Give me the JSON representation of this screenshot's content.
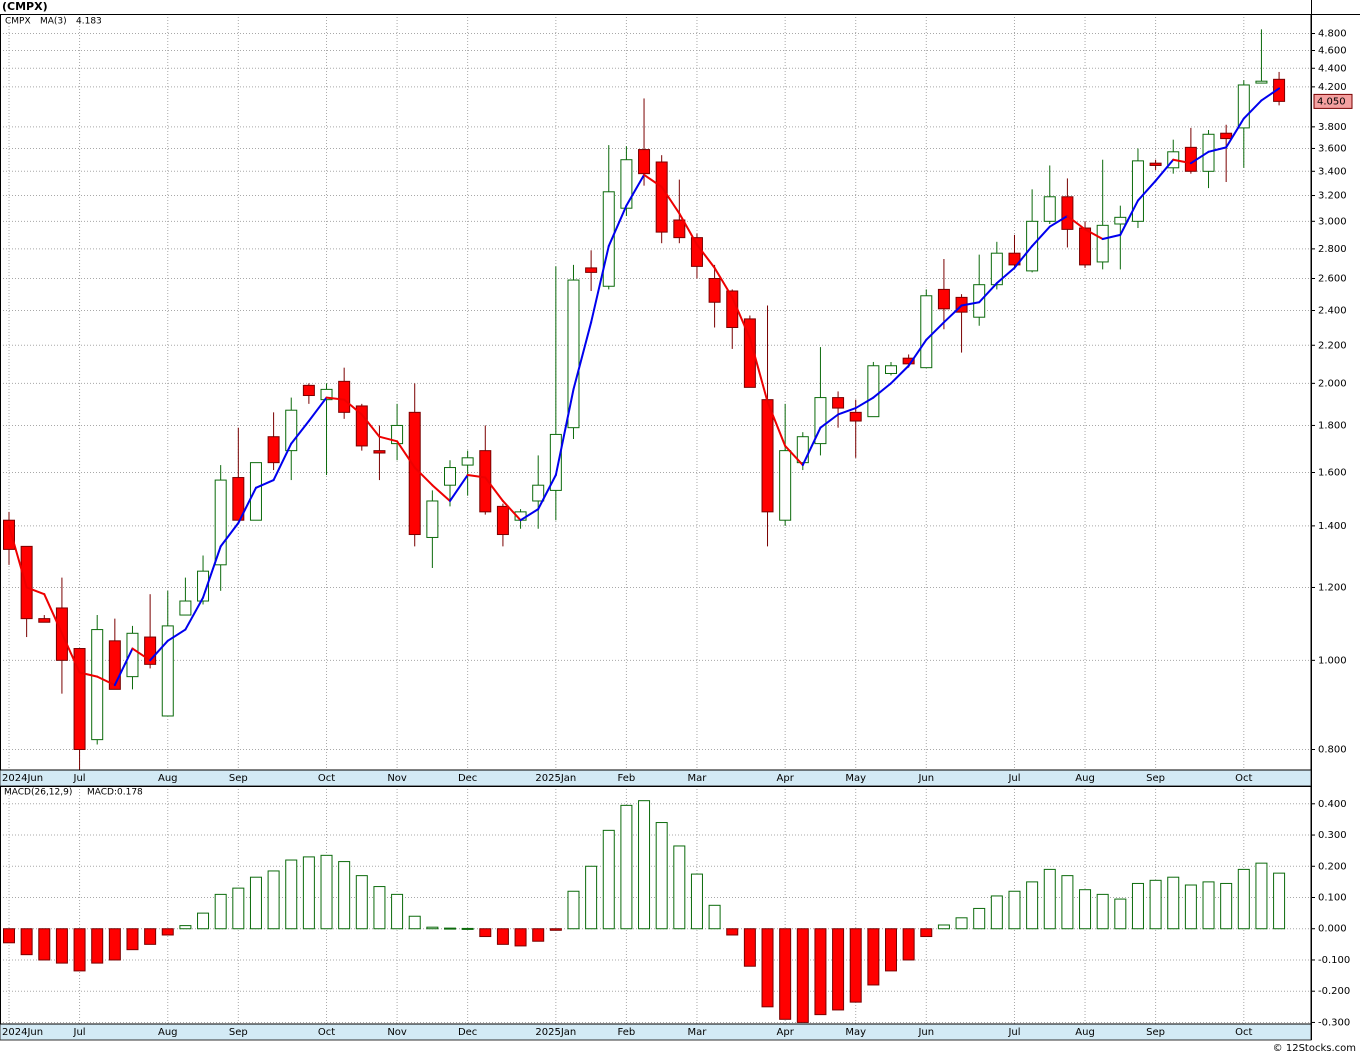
{
  "chart_data": [
    {
      "type": "candlestick",
      "title": "(CMPX)",
      "ticker": "CMPX",
      "categories": [
        "2024Jun",
        null,
        null,
        null,
        "Jul",
        null,
        null,
        null,
        null,
        "Aug",
        null,
        null,
        null,
        "Sep",
        null,
        null,
        null,
        null,
        "Oct",
        null,
        null,
        null,
        "Nov",
        null,
        null,
        null,
        "Dec",
        null,
        null,
        null,
        null,
        "2025Jan",
        null,
        null,
        null,
        "Feb",
        null,
        null,
        null,
        "Mar",
        null,
        null,
        null,
        null,
        "Apr",
        null,
        null,
        null,
        "May",
        null,
        null,
        null,
        "Jun",
        null,
        null,
        null,
        null,
        "Jul",
        null,
        null,
        null,
        "Aug",
        null,
        null,
        null,
        "Sep",
        null,
        null,
        null,
        null,
        "Oct",
        null,
        null
      ],
      "open": [
        1.42,
        1.33,
        1.11,
        1.14,
        1.03,
        0.82,
        1.05,
        0.96,
        1.06,
        0.87,
        1.12,
        1.16,
        1.27,
        1.58,
        1.42,
        1.75,
        1.69,
        1.99,
        1.92,
        2.01,
        1.89,
        1.69,
        1.72,
        1.86,
        1.36,
        1.55,
        1.63,
        1.69,
        1.47,
        1.42,
        1.49,
        1.53,
        1.79,
        2.67,
        2.55,
        3.1,
        3.59,
        3.48,
        3.01,
        2.88,
        2.6,
        2.52,
        2.35,
        1.92,
        1.42,
        1.64,
        1.72,
        1.93,
        1.86,
        1.84,
        2.05,
        2.13,
        2.08,
        2.53,
        2.48,
        2.36,
        2.56,
        2.77,
        2.65,
        3.0,
        3.19,
        2.95,
        2.71,
        2.98,
        3.0,
        3.47,
        3.43,
        3.61,
        3.4,
        3.74,
        3.79,
        4.24,
        4.28
      ],
      "high": [
        1.45,
        1.33,
        1.12,
        1.23,
        1.03,
        1.12,
        1.11,
        1.09,
        1.18,
        1.19,
        1.23,
        1.3,
        1.63,
        1.79,
        1.64,
        1.86,
        1.93,
        2.0,
        2.0,
        2.08,
        1.9,
        1.8,
        1.9,
        2.0,
        1.53,
        1.65,
        1.69,
        1.8,
        1.48,
        1.46,
        1.67,
        2.68,
        2.69,
        2.79,
        3.63,
        3.62,
        4.08,
        3.54,
        3.33,
        2.91,
        2.69,
        2.53,
        2.37,
        2.43,
        1.9,
        1.77,
        2.19,
        1.96,
        1.92,
        2.11,
        2.11,
        2.15,
        2.53,
        2.73,
        2.5,
        2.76,
        2.85,
        2.9,
        3.25,
        3.45,
        3.34,
        3.0,
        3.5,
        3.12,
        3.6,
        3.5,
        3.68,
        3.79,
        3.77,
        3.82,
        4.27,
        4.85,
        4.36
      ],
      "low": [
        1.27,
        1.06,
        1.1,
        0.92,
        0.76,
        0.81,
        0.93,
        0.93,
        0.98,
        0.87,
        1.12,
        1.15,
        1.19,
        1.42,
        1.42,
        1.61,
        1.57,
        1.9,
        1.59,
        1.83,
        1.69,
        1.57,
        1.65,
        1.33,
        1.26,
        1.47,
        1.51,
        1.44,
        1.33,
        1.39,
        1.39,
        1.42,
        1.74,
        2.52,
        2.53,
        3.04,
        3.28,
        2.84,
        2.84,
        2.6,
        2.3,
        2.18,
        1.98,
        1.33,
        1.4,
        1.61,
        1.67,
        1.79,
        1.66,
        1.84,
        2.04,
        2.08,
        2.08,
        2.29,
        2.16,
        2.31,
        2.53,
        2.67,
        2.64,
        2.98,
        2.81,
        2.67,
        2.66,
        2.66,
        2.95,
        3.41,
        3.38,
        3.38,
        3.26,
        3.31,
        3.43,
        4.24,
        4.01
      ],
      "close": [
        1.32,
        1.11,
        1.1,
        1.0,
        0.8,
        1.08,
        0.93,
        1.07,
        0.99,
        1.09,
        1.16,
        1.25,
        1.57,
        1.42,
        1.64,
        1.64,
        1.87,
        1.94,
        1.97,
        1.86,
        1.71,
        1.68,
        1.8,
        1.37,
        1.49,
        1.62,
        1.66,
        1.45,
        1.37,
        1.45,
        1.55,
        1.76,
        2.59,
        2.64,
        3.23,
        3.5,
        3.38,
        2.92,
        2.88,
        2.68,
        2.45,
        2.3,
        1.98,
        1.45,
        1.69,
        1.75,
        1.93,
        1.88,
        1.82,
        2.09,
        2.09,
        2.1,
        2.49,
        2.41,
        2.39,
        2.56,
        2.77,
        2.69,
        3.0,
        3.19,
        2.94,
        2.69,
        2.97,
        3.03,
        3.49,
        3.45,
        3.57,
        3.4,
        3.73,
        3.69,
        4.22,
        4.26,
        4.05
      ],
      "last_price_label": "4.050",
      "ma": {
        "name": "MA(3)",
        "value_label": "4.183",
        "rising_color": "#0000ee",
        "falling_color": "#ee0000",
        "values": [
          1.4,
          1.2,
          1.18,
          1.07,
          0.97,
          0.96,
          0.94,
          1.03,
          1.0,
          1.05,
          1.08,
          1.17,
          1.33,
          1.41,
          1.54,
          1.57,
          1.72,
          1.82,
          1.93,
          1.92,
          1.85,
          1.75,
          1.73,
          1.62,
          1.55,
          1.49,
          1.59,
          1.58,
          1.49,
          1.42,
          1.46,
          1.59,
          1.97,
          2.33,
          2.82,
          3.12,
          3.37,
          3.27,
          3.06,
          2.83,
          2.67,
          2.48,
          2.24,
          1.91,
          1.71,
          1.63,
          1.79,
          1.85,
          1.88,
          1.93,
          2.0,
          2.09,
          2.23,
          2.33,
          2.43,
          2.45,
          2.57,
          2.67,
          2.82,
          2.96,
          3.04,
          2.94,
          2.87,
          2.9,
          3.16,
          3.32,
          3.5,
          3.47,
          3.57,
          3.61,
          3.88,
          4.06,
          4.183
        ]
      },
      "up_fill": "#ffffff",
      "up_stroke": "#0b6a0b",
      "down_fill": "#ff0000",
      "down_stroke": "#7a0000",
      "log_scale": true,
      "grid": true,
      "ylim": [
        0.76,
        5.04
      ],
      "yticks": [
        {
          "value": 0.8,
          "label": "0.800"
        },
        {
          "value": 1.0,
          "label": "1.000"
        },
        {
          "value": 1.2,
          "label": "1.200"
        },
        {
          "value": 1.4,
          "label": "1.400"
        },
        {
          "value": 1.6,
          "label": "1.600"
        },
        {
          "value": 1.8,
          "label": "1.800"
        },
        {
          "value": 2.0,
          "label": "2.000"
        },
        {
          "value": 2.2,
          "label": "2.200"
        },
        {
          "value": 2.4,
          "label": "2.400"
        },
        {
          "value": 2.6,
          "label": "2.600"
        },
        {
          "value": 2.8,
          "label": "2.800"
        },
        {
          "value": 3.0,
          "label": "3.000"
        },
        {
          "value": 3.2,
          "label": "3.200"
        },
        {
          "value": 3.4,
          "label": "3.400"
        },
        {
          "value": 3.6,
          "label": "3.600"
        },
        {
          "value": 3.8,
          "label": "3.800"
        },
        {
          "value": 4.2,
          "label": "4.200"
        },
        {
          "value": 4.4,
          "label": "4.400"
        },
        {
          "value": 4.6,
          "label": "4.600"
        },
        {
          "value": 4.8,
          "label": "4.800"
        }
      ]
    },
    {
      "type": "bar",
      "title": "MACD(26,12,9)",
      "value_label": "MACD:0.178",
      "categories": [
        "2024Jun",
        null,
        null,
        null,
        "Jul",
        null,
        null,
        null,
        null,
        "Aug",
        null,
        null,
        null,
        "Sep",
        null,
        null,
        null,
        null,
        "Oct",
        null,
        null,
        null,
        "Nov",
        null,
        null,
        null,
        "Dec",
        null,
        null,
        null,
        null,
        "2025Jan",
        null,
        null,
        null,
        "Feb",
        null,
        null,
        null,
        "Mar",
        null,
        null,
        null,
        null,
        "Apr",
        null,
        null,
        null,
        "May",
        null,
        null,
        null,
        "Jun",
        null,
        null,
        null,
        null,
        "Jul",
        null,
        null,
        null,
        "Aug",
        null,
        null,
        null,
        "Sep",
        null,
        null,
        null,
        null,
        "Oct",
        null,
        null
      ],
      "values": [
        -0.045,
        -0.083,
        -0.1,
        -0.11,
        -0.135,
        -0.11,
        -0.1,
        -0.067,
        -0.05,
        -0.02,
        0.01,
        0.05,
        0.11,
        0.13,
        0.165,
        0.185,
        0.22,
        0.23,
        0.235,
        0.215,
        0.17,
        0.135,
        0.11,
        0.04,
        0.005,
        0.002,
        0.001,
        -0.025,
        -0.05,
        -0.055,
        -0.04,
        -0.005,
        0.12,
        0.2,
        0.315,
        0.395,
        0.41,
        0.34,
        0.265,
        0.175,
        0.075,
        -0.02,
        -0.12,
        -0.25,
        -0.29,
        -0.3,
        -0.275,
        -0.26,
        -0.235,
        -0.18,
        -0.135,
        -0.1,
        -0.025,
        0.012,
        0.035,
        0.065,
        0.105,
        0.12,
        0.15,
        0.19,
        0.17,
        0.125,
        0.11,
        0.095,
        0.145,
        0.155,
        0.165,
        0.14,
        0.15,
        0.145,
        0.19,
        0.21,
        0.178
      ],
      "up_fill": "#ffffff",
      "up_stroke": "#0b6a0b",
      "down_fill": "#ff0000",
      "down_stroke": "#7a0000",
      "grid": true,
      "ylim": [
        -0.305,
        0.457
      ],
      "yticks": [
        {
          "value": 0.4,
          "label": "0.400"
        },
        {
          "value": 0.3,
          "label": "0.300"
        },
        {
          "value": 0.2,
          "label": "0.200"
        },
        {
          "value": 0.1,
          "label": "0.100"
        },
        {
          "value": 0,
          "label": "0.000"
        },
        {
          "value": -0.1,
          "label": "-0.100"
        },
        {
          "value": -0.2,
          "label": "-0.200"
        },
        {
          "value": -0.3,
          "label": "-0.300"
        }
      ]
    }
  ],
  "footer": "© 12Stocks.com"
}
